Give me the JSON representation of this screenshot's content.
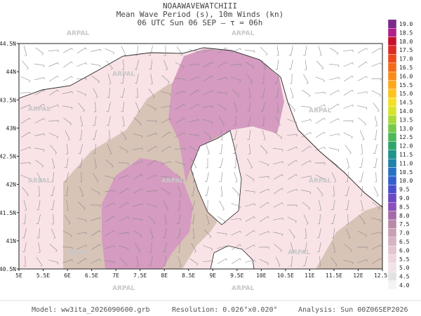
{
  "header": {
    "model_name": "NOAAWAVEWATCHIII",
    "title": "Mean Wave Period (s), 10m Winds (kn)",
    "subtitle": "06 UTC Sun 06 SEP  –  τ = 06h"
  },
  "map": {
    "lon_labels": [
      "5E",
      "5.5E",
      "6E",
      "6.5E",
      "7E",
      "7.5E",
      "8E",
      "8.5E",
      "9E",
      "9.5E",
      "10E",
      "10.5E",
      "11E",
      "11.5E",
      "12E",
      "12.5E"
    ],
    "lat_labels": [
      "44.5N",
      "44N",
      "43.5N",
      "43N",
      "42.5N",
      "42N",
      "41.5N",
      "41N",
      "40.5N"
    ],
    "watermark": "ARPAL"
  },
  "colorbar": {
    "labels": [
      "19.0",
      "18.5",
      "18.0",
      "17.5",
      "17.0",
      "16.5",
      "16.0",
      "15.5",
      "15.0",
      "14.5",
      "14.0",
      "13.5",
      "13.0",
      "12.5",
      "12.0",
      "11.5",
      "11.0",
      "10.5",
      "10.0",
      "9.5",
      "9.0",
      "8.5",
      "8.0",
      "7.5",
      "7.0",
      "6.5",
      "6.0",
      "5.5",
      "5.0",
      "4.5",
      "4.0"
    ]
  },
  "footer": {
    "model": "Model: ww3ita_2026090600.grb",
    "resolution": "Resolution: 0.026°x0.020°",
    "analysis": "Analysis: Sun 00Z06SEP2026"
  }
}
